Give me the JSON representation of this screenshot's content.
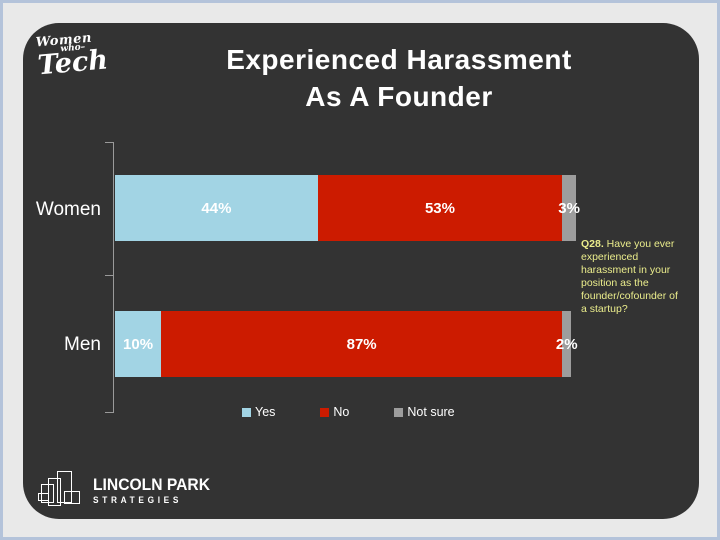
{
  "title": "Experienced Harassment\nAs A Founder",
  "brand": {
    "women_who_tech": {
      "line1": "Women",
      "line2": "who–",
      "line3": "Tech"
    },
    "lincoln_park": {
      "line1": "LINCOLN PARK",
      "line2": "STRATEGIES"
    }
  },
  "annotation": {
    "label": "Q28.",
    "text": " Have you ever experienced harassment in your position as the founder/cofounder of a startup?"
  },
  "chart_data": {
    "type": "bar",
    "subtype": "horizontal-stacked",
    "title": "Experienced Harassment As A Founder",
    "categories": [
      "Women",
      "Men"
    ],
    "series": [
      {
        "name": "Yes",
        "color": "#a2d4e4",
        "values": [
          44,
          10
        ]
      },
      {
        "name": "No",
        "color": "#cc1b00",
        "values": [
          53,
          87
        ]
      },
      {
        "name": "Not sure",
        "color": "#9d9d9d",
        "values": [
          3,
          2
        ]
      }
    ],
    "value_suffix": "%",
    "xlim": [
      0,
      100
    ],
    "legend_position": "bottom",
    "value_labels": "inside, white bold"
  },
  "colors": {
    "page_bg": "#e9e9e9",
    "page_border": "#b4c3da",
    "card_bg": "#333333",
    "axis": "#9a9a9a",
    "text": "#ffffff",
    "annotation_text": "#ebed8c"
  }
}
